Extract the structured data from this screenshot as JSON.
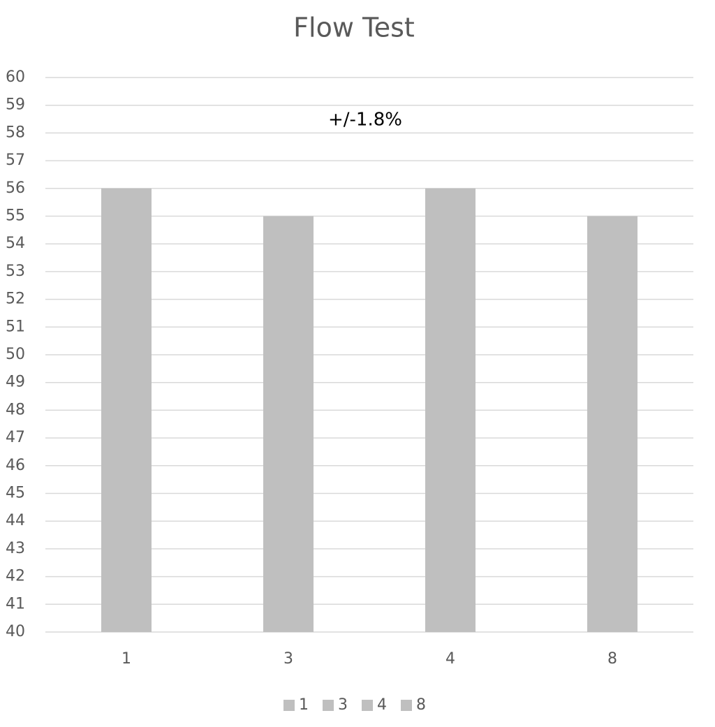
{
  "chart_data": {
    "type": "bar",
    "title": "Flow Test",
    "annotation": "+/-1.8%",
    "categories": [
      "1",
      "3",
      "4",
      "8"
    ],
    "values": [
      56,
      55,
      56,
      55
    ],
    "color": "#bfbfbf",
    "ylim": [
      40,
      60
    ],
    "yticks": [
      40,
      41,
      42,
      43,
      44,
      45,
      46,
      47,
      48,
      49,
      50,
      51,
      52,
      53,
      54,
      55,
      56,
      57,
      58,
      59,
      60
    ],
    "grid": true,
    "legend": "bottom"
  }
}
